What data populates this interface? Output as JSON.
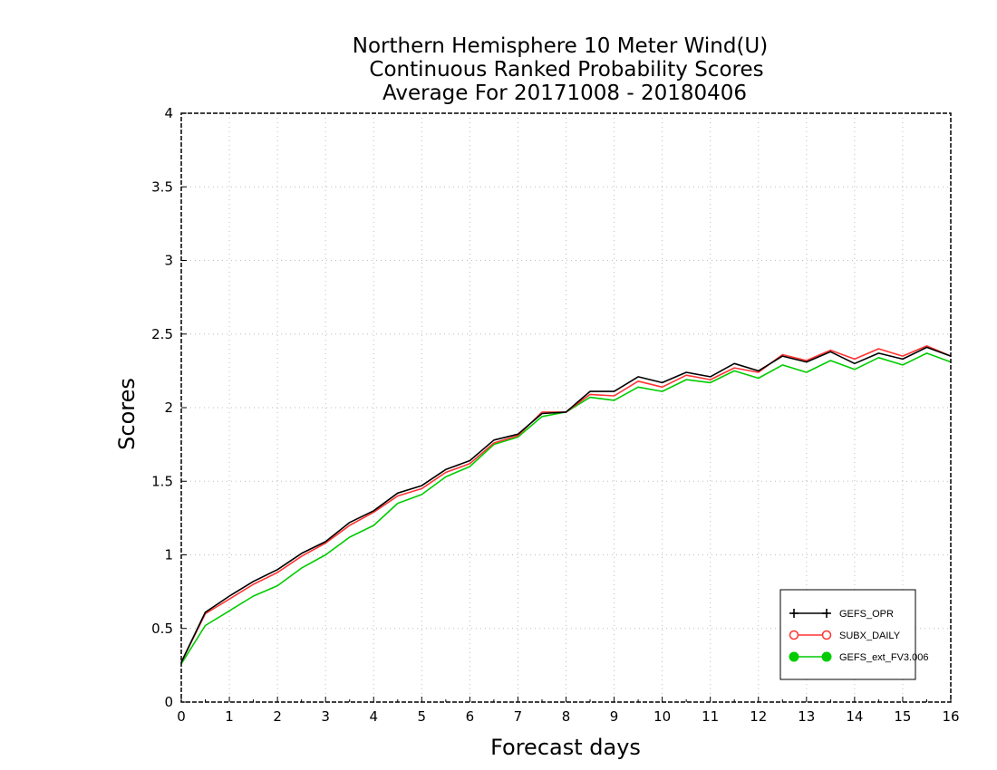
{
  "chart_data": {
    "type": "line",
    "title": [
      "Northern Hemisphere 10 Meter Wind(U)",
      "Continuous Ranked Probability Scores",
      "Average For 20171008 - 20180406"
    ],
    "xlabel": "Forecast days",
    "ylabel": "Scores",
    "xlim": [
      0,
      16
    ],
    "ylim": [
      0,
      4
    ],
    "xticks": [
      "0",
      "1",
      "2",
      "3",
      "4",
      "5",
      "6",
      "7",
      "8",
      "9",
      "10",
      "11",
      "12",
      "13",
      "14",
      "15",
      "16"
    ],
    "yticks": [
      "0",
      "0.5",
      "1",
      "1.5",
      "2",
      "2.5",
      "3",
      "3.5",
      "4"
    ],
    "grid": true,
    "legend_position": "bottom-right",
    "x": [
      0,
      0.5,
      1,
      1.5,
      2,
      2.5,
      3,
      3.5,
      4,
      4.5,
      5,
      5.5,
      6,
      6.5,
      7,
      7.5,
      8,
      8.5,
      9,
      9.5,
      10,
      10.5,
      11,
      11.5,
      12,
      12.5,
      13,
      13.5,
      14,
      14.5,
      15,
      15.5,
      16
    ],
    "series": [
      {
        "name": "GEFS_OPR",
        "color": "#000000",
        "marker": "plus",
        "values": [
          0.27,
          0.61,
          0.72,
          0.82,
          0.9,
          1.01,
          1.09,
          1.22,
          1.3,
          1.42,
          1.47,
          1.58,
          1.64,
          1.78,
          1.82,
          1.96,
          1.97,
          2.11,
          2.11,
          2.21,
          2.17,
          2.24,
          2.21,
          2.3,
          2.25,
          2.35,
          2.31,
          2.38,
          2.3,
          2.37,
          2.33,
          2.41,
          2.35
        ]
      },
      {
        "name": "SUBX_DAILY",
        "color": "#ff3333",
        "marker": "open-circle",
        "values": [
          0.27,
          0.6,
          0.7,
          0.8,
          0.88,
          0.99,
          1.08,
          1.2,
          1.29,
          1.4,
          1.45,
          1.56,
          1.62,
          1.76,
          1.81,
          1.97,
          1.97,
          2.09,
          2.08,
          2.18,
          2.14,
          2.22,
          2.19,
          2.27,
          2.24,
          2.36,
          2.32,
          2.39,
          2.33,
          2.4,
          2.35,
          2.42,
          2.35
        ]
      },
      {
        "name": "GEFS_ext_FV3.006",
        "color": "#00cc00",
        "marker": "filled-circle",
        "values": [
          0.26,
          0.52,
          0.62,
          0.72,
          0.79,
          0.91,
          1.0,
          1.12,
          1.2,
          1.35,
          1.41,
          1.53,
          1.6,
          1.75,
          1.8,
          1.94,
          1.97,
          2.07,
          2.05,
          2.14,
          2.11,
          2.19,
          2.17,
          2.25,
          2.2,
          2.29,
          2.24,
          2.32,
          2.26,
          2.34,
          2.29,
          2.37,
          2.31
        ]
      }
    ]
  }
}
